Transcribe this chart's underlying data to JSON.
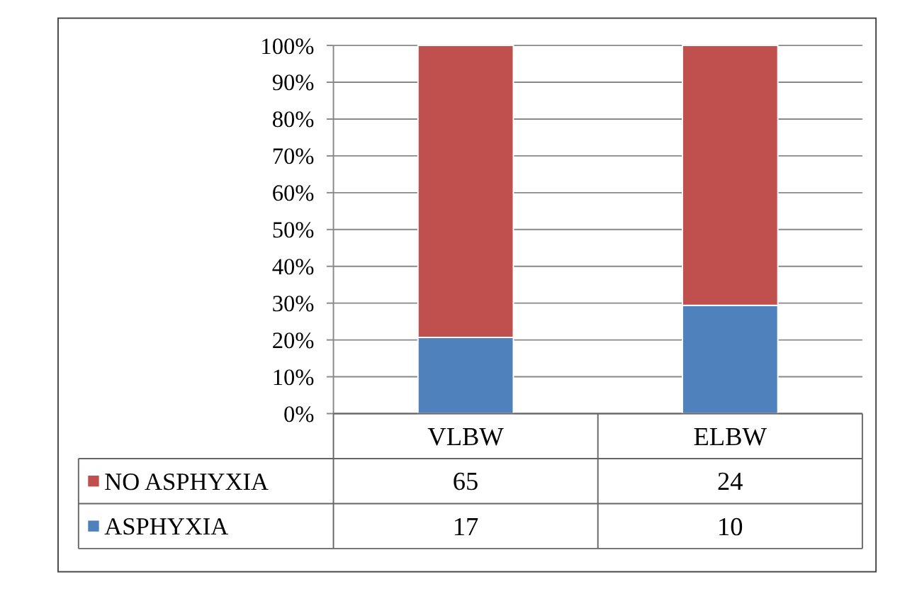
{
  "chart_data": {
    "type": "bar",
    "stacked": true,
    "categories": [
      "VLBW",
      "ELBW"
    ],
    "series": [
      {
        "name": "ASPHYXIA",
        "color": "#4f81bd",
        "values": [
          20.7,
          29.4
        ]
      },
      {
        "name": "NO ASPHYXIA",
        "color": "#c0504d",
        "values": [
          79.3,
          70.6
        ]
      }
    ],
    "annotations": [
      "65",
      "24",
      "17",
      "10"
    ],
    "ylim": [
      0,
      100
    ],
    "yticks": [
      {
        "value": 0,
        "label": "0%"
      },
      {
        "value": 10,
        "label": "10%"
      },
      {
        "value": 20,
        "label": "20%"
      },
      {
        "value": 30,
        "label": "30%"
      },
      {
        "value": 40,
        "label": "40%"
      },
      {
        "value": 50,
        "label": "50%"
      },
      {
        "value": 60,
        "label": "60%"
      },
      {
        "value": 70,
        "label": "70%"
      },
      {
        "value": 80,
        "label": "80%"
      },
      {
        "value": 90,
        "label": "90%"
      },
      {
        "value": 100,
        "label": "100%"
      }
    ],
    "grid": "y",
    "legend": "bottom left"
  }
}
